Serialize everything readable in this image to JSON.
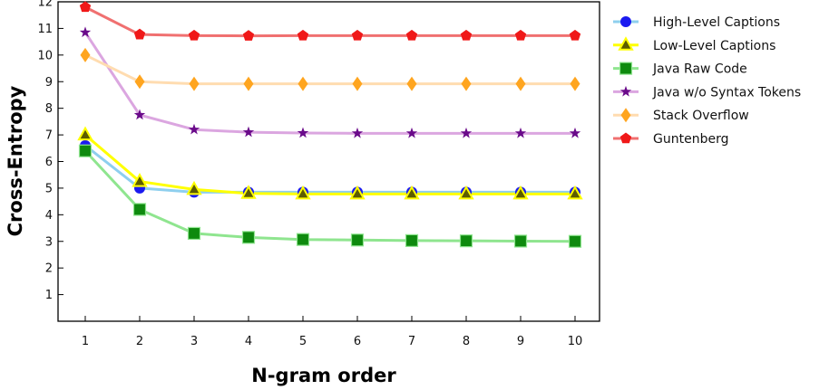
{
  "chart_data": {
    "type": "line",
    "xlabel": "N-gram order",
    "ylabel": "Cross-Entropy",
    "x": [
      1,
      2,
      3,
      4,
      5,
      6,
      7,
      8,
      9,
      10
    ],
    "xlim": [
      0.5,
      10.6
    ],
    "ylim": [
      0,
      12
    ],
    "yticks": [
      1,
      2,
      3,
      4,
      5,
      6,
      7,
      8,
      9,
      10,
      11,
      12
    ],
    "grid": false,
    "legend_position": "top-right, outside plot",
    "series": [
      {
        "name": "High-Level Captions",
        "values": [
          6.6,
          5.0,
          4.85,
          4.85,
          4.85,
          4.85,
          4.85,
          4.85,
          4.85,
          4.85
        ],
        "line_color": "#8ecfee",
        "marker": "circle",
        "marker_color": "#1a1af0"
      },
      {
        "name": "Low-Level Captions",
        "values": [
          7.0,
          5.25,
          4.95,
          4.8,
          4.78,
          4.78,
          4.78,
          4.78,
          4.78,
          4.78
        ],
        "line_color": "#ffff00",
        "marker": "triangle",
        "marker_color": "#5c5c00"
      },
      {
        "name": "Java Raw Code",
        "values": [
          6.4,
          4.2,
          3.3,
          3.15,
          3.07,
          3.05,
          3.03,
          3.02,
          3.01,
          3.0
        ],
        "line_color": "#8fe58f",
        "marker": "square",
        "marker_color": "#0e8a0e"
      },
      {
        "name": "Java w/o Syntax Tokens",
        "values": [
          10.85,
          7.75,
          7.2,
          7.1,
          7.07,
          7.06,
          7.06,
          7.06,
          7.06,
          7.06
        ],
        "line_color": "#dba6e0",
        "marker": "star",
        "marker_color": "#6a0a8a"
      },
      {
        "name": "Stack Overflow",
        "values": [
          10.0,
          9.0,
          8.92,
          8.92,
          8.92,
          8.92,
          8.92,
          8.92,
          8.92,
          8.92
        ],
        "line_color": "#ffdcb0",
        "marker": "diamond",
        "marker_color": "#ffa51f"
      },
      {
        "name": "Guntenberg",
        "values": [
          11.8,
          10.77,
          10.73,
          10.72,
          10.73,
          10.73,
          10.73,
          10.73,
          10.73,
          10.73
        ],
        "line_color": "#f07070",
        "marker": "pentagon",
        "marker_color": "#f01818"
      }
    ]
  }
}
